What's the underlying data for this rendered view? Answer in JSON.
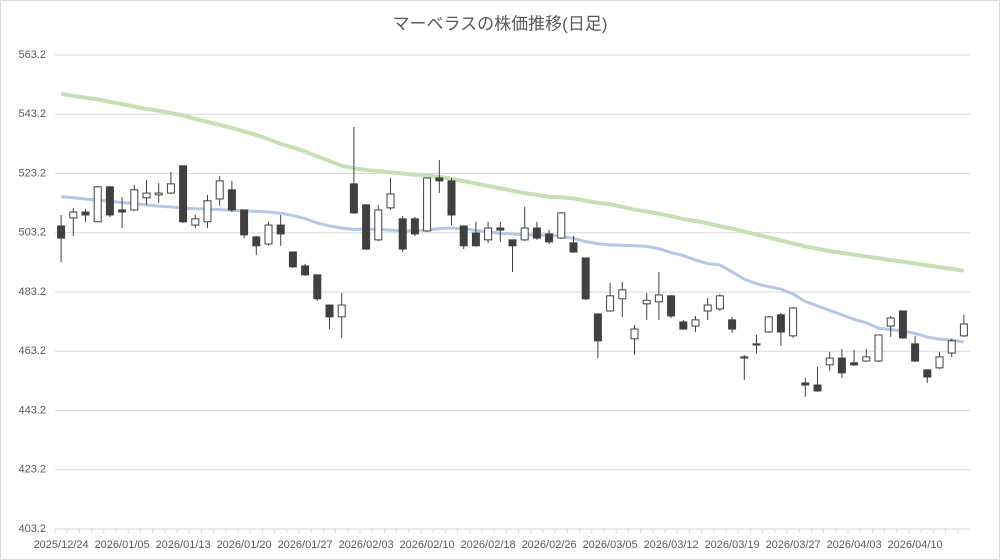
{
  "chart_data": {
    "type": "candlestick",
    "title": "マーベラスの株価推移(日足)",
    "categories": [
      "2025/12/24",
      null,
      null,
      null,
      null,
      "2026/01/05",
      null,
      null,
      null,
      null,
      "2026/01/13",
      null,
      null,
      null,
      null,
      "2026/01/20",
      null,
      null,
      null,
      null,
      "2026/01/27",
      null,
      null,
      null,
      null,
      "2026/02/03",
      null,
      null,
      null,
      null,
      "2026/02/10",
      null,
      null,
      null,
      null,
      "2026/02/18",
      null,
      null,
      null,
      null,
      "2026/02/26",
      null,
      null,
      null,
      null,
      "2026/03/05",
      null,
      null,
      null,
      null,
      "2026/03/12",
      null,
      null,
      null,
      null,
      "2026/03/19",
      null,
      null,
      null,
      null,
      "2026/03/27",
      null,
      null,
      null,
      null,
      "2026/04/03",
      null,
      null,
      null,
      null,
      "2026/04/10",
      null,
      null,
      null,
      null
    ],
    "open": [
      505.5,
      508.2,
      510.2,
      506.9,
      518.7,
      510.9,
      510.9,
      515.0,
      516.0,
      516.6,
      525.8,
      505.8,
      506.9,
      514.6,
      517.7,
      510.9,
      501.8,
      499.4,
      505.8,
      496.7,
      492.0,
      489.0,
      478.8,
      474.8,
      519.7,
      512.6,
      500.8,
      511.6,
      507.9,
      507.9,
      503.8,
      521.7,
      520.7,
      505.5,
      503.1,
      500.8,
      504.8,
      500.8,
      500.8,
      504.8,
      502.8,
      501.4,
      499.8,
      494.7,
      475.8,
      476.8,
      480.9,
      467.4,
      479.2,
      479.9,
      481.9,
      473.1,
      471.7,
      476.8,
      477.5,
      473.8,
      461.3,
      465.7,
      469.7,
      475.5,
      468.4,
      452.5,
      451.8,
      458.6,
      460.9,
      459.3,
      459.9,
      459.9,
      471.7,
      476.8,
      465.7,
      456.9,
      457.6,
      462.6,
      468.4
    ],
    "high": [
      509.2,
      511.6,
      511.2,
      519.0,
      519.0,
      515.3,
      519.3,
      521.0,
      520.0,
      523.7,
      525.8,
      509.2,
      516.0,
      522.4,
      520.7,
      510.9,
      502.1,
      506.9,
      509.2,
      496.7,
      492.7,
      489.0,
      478.8,
      482.9,
      538.9,
      512.9,
      512.6,
      521.7,
      508.9,
      508.5,
      521.7,
      527.8,
      521.7,
      505.5,
      506.9,
      506.9,
      506.9,
      500.8,
      511.9,
      506.9,
      504.1,
      510.2,
      502.1,
      494.7,
      475.8,
      486.3,
      486.6,
      472.1,
      482.9,
      490.0,
      482.2,
      473.8,
      475.1,
      481.2,
      482.5,
      474.8,
      462.0,
      468.7,
      475.1,
      476.1,
      478.2,
      454.2,
      457.9,
      463.0,
      464.0,
      463.6,
      464.0,
      468.7,
      475.1,
      476.8,
      468.4,
      457.2,
      463.0,
      467.4,
      475.5
    ],
    "low": [
      493.3,
      502.1,
      506.9,
      506.9,
      508.5,
      504.8,
      510.6,
      512.6,
      513.3,
      516.3,
      506.5,
      504.8,
      504.8,
      512.3,
      510.2,
      501.4,
      495.7,
      498.8,
      498.8,
      491.3,
      488.6,
      480.2,
      470.7,
      467.7,
      509.5,
      497.4,
      500.4,
      510.9,
      496.7,
      502.1,
      503.5,
      516.6,
      505.8,
      497.7,
      498.5,
      499.8,
      500.1,
      490.0,
      500.4,
      500.8,
      499.4,
      501.1,
      496.4,
      480.5,
      460.9,
      476.5,
      474.8,
      462.0,
      473.8,
      473.8,
      474.4,
      470.4,
      469.7,
      473.8,
      476.8,
      469.4,
      453.5,
      462.3,
      469.4,
      465.0,
      467.7,
      447.8,
      449.5,
      456.6,
      454.2,
      458.2,
      459.6,
      459.6,
      468.0,
      467.4,
      459.6,
      452.5,
      457.2,
      461.3,
      468.0
    ],
    "close": [
      501.4,
      510.2,
      509.2,
      518.7,
      509.2,
      510.2,
      517.7,
      516.6,
      516.6,
      519.7,
      506.9,
      507.9,
      514.0,
      520.7,
      510.9,
      502.5,
      498.8,
      505.8,
      502.8,
      491.7,
      489.0,
      480.9,
      474.8,
      478.8,
      509.9,
      497.7,
      510.9,
      516.3,
      497.7,
      502.8,
      521.7,
      520.7,
      509.2,
      498.8,
      498.8,
      504.8,
      504.1,
      498.8,
      504.8,
      501.4,
      500.1,
      509.9,
      496.7,
      480.9,
      466.7,
      481.9,
      483.9,
      470.7,
      480.4,
      482.2,
      475.1,
      470.7,
      473.8,
      478.8,
      481.9,
      470.7,
      460.9,
      465.3,
      474.8,
      469.7,
      477.8,
      451.8,
      449.8,
      460.9,
      455.9,
      458.6,
      461.3,
      468.7,
      474.4,
      467.7,
      459.9,
      454.5,
      461.3,
      466.7,
      472.4
    ],
    "up_color": "#ffffff",
    "down_color": "#404040",
    "edge_color": "#404040",
    "series": [
      {
        "color": "#c5e0b4",
        "values": [
          550.1,
          549.4,
          548.8,
          548.2,
          547.4,
          546.6,
          545.8,
          545.0,
          544.4,
          543.6,
          542.8,
          541.6,
          540.6,
          539.6,
          538.6,
          537.4,
          536.2,
          534.8,
          533.2,
          532.0,
          530.6,
          529.0,
          527.4,
          525.8,
          525.0,
          524.4,
          524.0,
          523.6,
          523.2,
          522.8,
          522.6,
          522.0,
          521.4,
          520.6,
          519.8,
          519.0,
          518.2,
          517.4,
          516.6,
          516.0,
          515.3,
          515.2,
          514.8,
          514.0,
          513.3,
          512.8,
          512.0,
          511.0,
          510.4,
          509.6,
          508.8,
          507.8,
          507.2,
          506.4,
          505.4,
          504.6,
          503.6,
          502.6,
          501.6,
          500.6,
          499.6,
          498.6,
          497.8,
          497.0,
          496.4,
          495.8,
          495.2,
          494.6,
          494.0,
          493.4,
          492.8,
          492.2,
          491.6,
          491.0,
          490.4
        ]
      },
      {
        "color": "#b4c7e7",
        "values": [
          515.4,
          515.0,
          514.6,
          514.2,
          513.8,
          513.4,
          513.0,
          512.6,
          512.2,
          511.9,
          511.5,
          511.3,
          511.2,
          511.0,
          510.8,
          510.6,
          510.4,
          510.2,
          509.8,
          509.0,
          508.0,
          506.5,
          505.5,
          504.8,
          504.3,
          504.5,
          504.3,
          504.1,
          503.8,
          504.0,
          504.1,
          504.6,
          504.8,
          504.5,
          504.0,
          503.5,
          503.0,
          502.8,
          502.5,
          502.4,
          502.3,
          502.0,
          501.3,
          500.2,
          499.5,
          499.1,
          499.0,
          498.8,
          498.6,
          497.8,
          496.5,
          495.5,
          494.0,
          492.8,
          492.3,
          490.0,
          487.5,
          486.0,
          485.0,
          484.2,
          482.5,
          480.0,
          478.5,
          477.0,
          475.5,
          474.0,
          472.8,
          471.0,
          470.5,
          470.0,
          469.2,
          468.0,
          467.3,
          467.0,
          466.3
        ]
      }
    ],
    "ylim": [
      403.2,
      563.2
    ],
    "yticks": [
      403.2,
      423.2,
      443.2,
      463.2,
      483.2,
      503.2,
      523.2,
      543.2,
      563.2
    ],
    "grid": true
  }
}
